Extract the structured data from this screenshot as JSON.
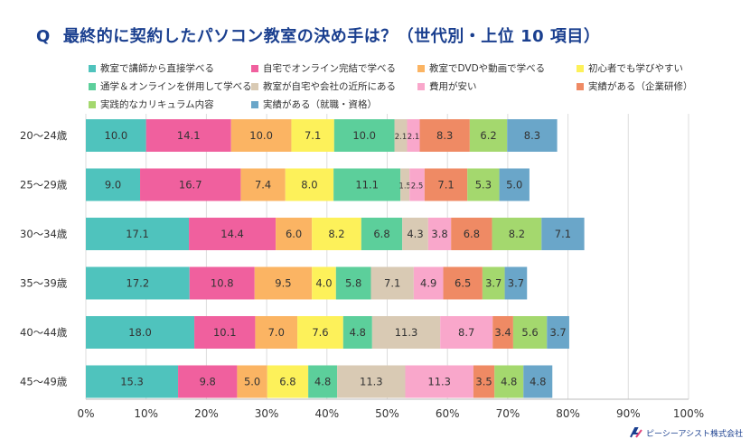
{
  "header": {
    "q_mark": "Q",
    "title": "最終的に契約したパソコン教室の決め手は？（世代別・上位 10 項目）"
  },
  "logo": {
    "text": "ピーシーアシスト株式会社"
  },
  "chart_data": {
    "type": "bar",
    "orientation": "horizontal-stacked-percent",
    "title": "最終的に契約したパソコン教室の決め手は？（世代別・上位 10 項目）",
    "categories": [
      "20～24歳",
      "25～29歳",
      "30～34歳",
      "35～39歳",
      "40～44歳",
      "45～49歳"
    ],
    "x_ticks": [
      "0%",
      "10%",
      "20%",
      "30%",
      "40%",
      "50%",
      "60%",
      "70%",
      "80%",
      "90%",
      "100%"
    ],
    "xlim": [
      0,
      100
    ],
    "legend_position": "top",
    "series": [
      {
        "name": "教室で講師から直接学べる",
        "color": "#4fc3bd",
        "values": [
          10.0,
          9.0,
          17.1,
          17.2,
          18.0,
          15.3
        ]
      },
      {
        "name": "自宅でオンライン完結で学べる",
        "color": "#f0609e",
        "values": [
          14.1,
          16.7,
          14.4,
          10.8,
          10.1,
          9.8
        ]
      },
      {
        "name": "教室でDVDや動画で学べる",
        "color": "#fbb463",
        "values": [
          10.0,
          7.4,
          6.0,
          9.5,
          7.0,
          5.0
        ]
      },
      {
        "name": "初心者でも学びやすい",
        "color": "#fdf15a",
        "values": [
          7.1,
          8.0,
          8.2,
          4.0,
          7.6,
          6.8
        ]
      },
      {
        "name": "通学＆オンラインを併用して学べる",
        "color": "#5ccf9b",
        "values": [
          10.0,
          11.1,
          6.8,
          5.8,
          4.8,
          4.8
        ]
      },
      {
        "name": "教室が自宅や会社の近所にある",
        "color": "#d9cab4",
        "values": [
          2.1,
          1.5,
          4.3,
          7.1,
          11.3,
          11.3
        ]
      },
      {
        "name": "費用が安い",
        "color": "#f9a7cb",
        "values": [
          2.1,
          2.5,
          3.8,
          4.9,
          8.7,
          11.3
        ]
      },
      {
        "name": "実績がある（企業研修）",
        "color": "#ef8a64",
        "values": [
          8.3,
          7.1,
          6.8,
          6.5,
          3.4,
          3.5
        ]
      },
      {
        "name": "実践的なカリキュラム内容",
        "color": "#a4d86e",
        "values": [
          6.2,
          5.3,
          8.2,
          3.7,
          5.6,
          4.8
        ]
      },
      {
        "name": "実績がある（就職・資格）",
        "color": "#6aa6c9",
        "values": [
          8.3,
          5.0,
          7.1,
          3.7,
          3.7,
          4.8
        ]
      }
    ]
  }
}
